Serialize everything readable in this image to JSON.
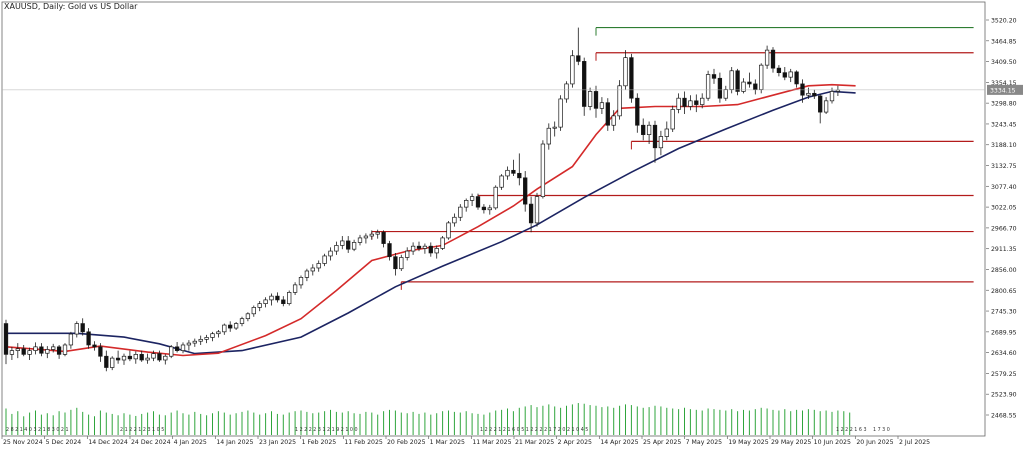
{
  "window": {
    "title": "XAUUSD, Daily:  Gold vs US Dollar"
  },
  "colors": {
    "background": "#ffffff",
    "grid": "#e9e9e9",
    "axis": "#666666",
    "candle_outline": "#1a1a1a",
    "candle_up_fill": "#ffffff",
    "candle_down_fill": "#111111",
    "ma_fast": "#d42a2a",
    "ma_slow": "#1c2462",
    "level_red": "#b31b1b",
    "level_green": "#2e7d32",
    "volume": "#2fa53c",
    "price_tag": "#888888"
  },
  "price_axis": {
    "labels": [
      "3520.20",
      "3464.85",
      "3409.50",
      "3354.15",
      "3298.80",
      "3243.45",
      "3188.10",
      "3132.75",
      "3077.40",
      "3022.05",
      "2966.70",
      "2911.35",
      "2856.00",
      "2800.65",
      "2745.30",
      "2689.95",
      "2634.60",
      "2579.25",
      "2523.90",
      "2468.55"
    ],
    "current_price_label": "3334.15"
  },
  "time_axis": {
    "labels": [
      "25 Nov 2024",
      "5 Dec 2024",
      "14 Dec 2024",
      "24 Dec 2024",
      "4 Jan 2025",
      "14 Jan 2025",
      "23 Jan 2025",
      "1 Feb 2025",
      "11 Feb 2025",
      "20 Feb 2025",
      "1 Mar 2025",
      "11 Mar 2025",
      "21 Mar 2025",
      "2 Apr 2025",
      "14 Apr 2025",
      "25 Apr 2025",
      "7 May 2025",
      "19 May 2025",
      "29 May 2025",
      "10 Jun 2025",
      "20 Jun 2025",
      "2 Jul 2025"
    ]
  },
  "volume_tick_labels": [
    {
      "text": "2 8 2 1 4 0 3 2 1 8 3 0 2 1"
    },
    {
      "text": "1 2 2 2 2 3 1 2 1 9 2 1 0 0"
    },
    {
      "text": "2 1 2 2 1 2 3 1 0 5"
    },
    {
      "text": "1 2 2 2 1 2 1 6 0 5 1 2 2 2 2 1 7 2 0 2 1 0 4 5"
    },
    {
      "text": "1 2 2 2 1 6 3"
    },
    {
      "text": "1 7 3 0"
    }
  ],
  "chart_data": {
    "type": "candlestick",
    "title": "XAUUSD, Daily:  Gold vs US Dollar",
    "xlabel": "",
    "ylabel": "",
    "ylim": [
      2440,
      3545
    ],
    "x_range": [
      "25 Nov 2024",
      "2 Jul 2025"
    ],
    "grid": false,
    "legend": "none",
    "ohlc": [
      {
        "o": 2712,
        "h": 2722,
        "l": 2604,
        "c": 2630
      },
      {
        "o": 2630,
        "h": 2650,
        "l": 2615,
        "c": 2640
      },
      {
        "o": 2640,
        "h": 2660,
        "l": 2620,
        "c": 2645
      },
      {
        "o": 2645,
        "h": 2655,
        "l": 2625,
        "c": 2630
      },
      {
        "o": 2630,
        "h": 2648,
        "l": 2615,
        "c": 2640
      },
      {
        "o": 2640,
        "h": 2662,
        "l": 2630,
        "c": 2650
      },
      {
        "o": 2650,
        "h": 2660,
        "l": 2625,
        "c": 2633
      },
      {
        "o": 2633,
        "h": 2652,
        "l": 2620,
        "c": 2643
      },
      {
        "o": 2643,
        "h": 2658,
        "l": 2635,
        "c": 2650
      },
      {
        "o": 2650,
        "h": 2655,
        "l": 2618,
        "c": 2630
      },
      {
        "o": 2630,
        "h": 2660,
        "l": 2625,
        "c": 2655
      },
      {
        "o": 2655,
        "h": 2690,
        "l": 2645,
        "c": 2684
      },
      {
        "o": 2684,
        "h": 2718,
        "l": 2675,
        "c": 2712
      },
      {
        "o": 2712,
        "h": 2726,
        "l": 2680,
        "c": 2690
      },
      {
        "o": 2690,
        "h": 2700,
        "l": 2645,
        "c": 2655
      },
      {
        "o": 2655,
        "h": 2665,
        "l": 2640,
        "c": 2650
      },
      {
        "o": 2650,
        "h": 2660,
        "l": 2610,
        "c": 2625
      },
      {
        "o": 2625,
        "h": 2640,
        "l": 2585,
        "c": 2595
      },
      {
        "o": 2595,
        "h": 2625,
        "l": 2588,
        "c": 2620
      },
      {
        "o": 2620,
        "h": 2640,
        "l": 2605,
        "c": 2615
      },
      {
        "o": 2615,
        "h": 2632,
        "l": 2602,
        "c": 2625
      },
      {
        "o": 2625,
        "h": 2640,
        "l": 2612,
        "c": 2618
      },
      {
        "o": 2618,
        "h": 2638,
        "l": 2605,
        "c": 2630
      },
      {
        "o": 2630,
        "h": 2640,
        "l": 2610,
        "c": 2615
      },
      {
        "o": 2615,
        "h": 2632,
        "l": 2605,
        "c": 2620
      },
      {
        "o": 2620,
        "h": 2640,
        "l": 2612,
        "c": 2632
      },
      {
        "o": 2632,
        "h": 2640,
        "l": 2610,
        "c": 2615
      },
      {
        "o": 2615,
        "h": 2630,
        "l": 2603,
        "c": 2625
      },
      {
        "o": 2625,
        "h": 2655,
        "l": 2620,
        "c": 2650
      },
      {
        "o": 2650,
        "h": 2663,
        "l": 2635,
        "c": 2640
      },
      {
        "o": 2640,
        "h": 2662,
        "l": 2633,
        "c": 2655
      },
      {
        "o": 2655,
        "h": 2668,
        "l": 2640,
        "c": 2660
      },
      {
        "o": 2660,
        "h": 2672,
        "l": 2650,
        "c": 2665
      },
      {
        "o": 2665,
        "h": 2680,
        "l": 2655,
        "c": 2670
      },
      {
        "o": 2670,
        "h": 2682,
        "l": 2660,
        "c": 2675
      },
      {
        "o": 2675,
        "h": 2690,
        "l": 2665,
        "c": 2685
      },
      {
        "o": 2685,
        "h": 2695,
        "l": 2675,
        "c": 2690
      },
      {
        "o": 2690,
        "h": 2712,
        "l": 2682,
        "c": 2708
      },
      {
        "o": 2708,
        "h": 2718,
        "l": 2690,
        "c": 2700
      },
      {
        "o": 2700,
        "h": 2716,
        "l": 2695,
        "c": 2712
      },
      {
        "o": 2712,
        "h": 2730,
        "l": 2705,
        "c": 2725
      },
      {
        "o": 2725,
        "h": 2742,
        "l": 2718,
        "c": 2738
      },
      {
        "o": 2738,
        "h": 2760,
        "l": 2730,
        "c": 2755
      },
      {
        "o": 2755,
        "h": 2772,
        "l": 2745,
        "c": 2765
      },
      {
        "o": 2765,
        "h": 2782,
        "l": 2755,
        "c": 2775
      },
      {
        "o": 2775,
        "h": 2792,
        "l": 2760,
        "c": 2785
      },
      {
        "o": 2785,
        "h": 2795,
        "l": 2768,
        "c": 2775
      },
      {
        "o": 2775,
        "h": 2785,
        "l": 2758,
        "c": 2765
      },
      {
        "o": 2765,
        "h": 2800,
        "l": 2760,
        "c": 2795
      },
      {
        "o": 2795,
        "h": 2822,
        "l": 2788,
        "c": 2815
      },
      {
        "o": 2815,
        "h": 2840,
        "l": 2805,
        "c": 2835
      },
      {
        "o": 2835,
        "h": 2858,
        "l": 2825,
        "c": 2852
      },
      {
        "o": 2852,
        "h": 2870,
        "l": 2840,
        "c": 2860
      },
      {
        "o": 2860,
        "h": 2880,
        "l": 2850,
        "c": 2872
      },
      {
        "o": 2872,
        "h": 2898,
        "l": 2865,
        "c": 2892
      },
      {
        "o": 2892,
        "h": 2915,
        "l": 2880,
        "c": 2905
      },
      {
        "o": 2905,
        "h": 2930,
        "l": 2895,
        "c": 2920
      },
      {
        "o": 2920,
        "h": 2945,
        "l": 2910,
        "c": 2932
      },
      {
        "o": 2932,
        "h": 2945,
        "l": 2900,
        "c": 2910
      },
      {
        "o": 2910,
        "h": 2935,
        "l": 2905,
        "c": 2928
      },
      {
        "o": 2928,
        "h": 2948,
        "l": 2920,
        "c": 2940
      },
      {
        "o": 2940,
        "h": 2952,
        "l": 2925,
        "c": 2945
      },
      {
        "o": 2945,
        "h": 2960,
        "l": 2935,
        "c": 2950
      },
      {
        "o": 2950,
        "h": 2962,
        "l": 2938,
        "c": 2955
      },
      {
        "o": 2955,
        "h": 2960,
        "l": 2915,
        "c": 2925
      },
      {
        "o": 2925,
        "h": 2932,
        "l": 2880,
        "c": 2890
      },
      {
        "o": 2890,
        "h": 2900,
        "l": 2840,
        "c": 2858
      },
      {
        "o": 2858,
        "h": 2895,
        "l": 2852,
        "c": 2888
      },
      {
        "o": 2888,
        "h": 2915,
        "l": 2880,
        "c": 2905
      },
      {
        "o": 2905,
        "h": 2928,
        "l": 2895,
        "c": 2918
      },
      {
        "o": 2918,
        "h": 2930,
        "l": 2905,
        "c": 2912
      },
      {
        "o": 2912,
        "h": 2925,
        "l": 2898,
        "c": 2918
      },
      {
        "o": 2918,
        "h": 2928,
        "l": 2890,
        "c": 2900
      },
      {
        "o": 2900,
        "h": 2920,
        "l": 2885,
        "c": 2912
      },
      {
        "o": 2912,
        "h": 2945,
        "l": 2908,
        "c": 2940
      },
      {
        "o": 2940,
        "h": 2985,
        "l": 2935,
        "c": 2980
      },
      {
        "o": 2980,
        "h": 3005,
        "l": 2970,
        "c": 2995
      },
      {
        "o": 2995,
        "h": 3030,
        "l": 2985,
        "c": 3022
      },
      {
        "o": 3022,
        "h": 3045,
        "l": 3010,
        "c": 3040
      },
      {
        "o": 3040,
        "h": 3058,
        "l": 3025,
        "c": 3050
      },
      {
        "o": 3050,
        "h": 3058,
        "l": 3015,
        "c": 3022
      },
      {
        "o": 3022,
        "h": 3030,
        "l": 3005,
        "c": 3015
      },
      {
        "o": 3015,
        "h": 3028,
        "l": 3002,
        "c": 3020
      },
      {
        "o": 3020,
        "h": 3080,
        "l": 3015,
        "c": 3075
      },
      {
        "o": 3075,
        "h": 3110,
        "l": 3068,
        "c": 3105
      },
      {
        "o": 3105,
        "h": 3130,
        "l": 3095,
        "c": 3120
      },
      {
        "o": 3120,
        "h": 3148,
        "l": 3105,
        "c": 3112
      },
      {
        "o": 3112,
        "h": 3165,
        "l": 3080,
        "c": 3100
      },
      {
        "o": 3100,
        "h": 3118,
        "l": 3010,
        "c": 3030
      },
      {
        "o": 3030,
        "h": 3050,
        "l": 2955,
        "c": 2980
      },
      {
        "o": 2980,
        "h": 3060,
        "l": 2970,
        "c": 3050
      },
      {
        "o": 3050,
        "h": 3200,
        "l": 3045,
        "c": 3190
      },
      {
        "o": 3190,
        "h": 3245,
        "l": 3175,
        "c": 3232
      },
      {
        "o": 3232,
        "h": 3250,
        "l": 3210,
        "c": 3235
      },
      {
        "o": 3235,
        "h": 3320,
        "l": 3225,
        "c": 3310
      },
      {
        "o": 3310,
        "h": 3357,
        "l": 3300,
        "c": 3350
      },
      {
        "o": 3350,
        "h": 3440,
        "l": 3340,
        "c": 3425
      },
      {
        "o": 3425,
        "h": 3500,
        "l": 3400,
        "c": 3410
      },
      {
        "o": 3410,
        "h": 3420,
        "l": 3265,
        "c": 3290
      },
      {
        "o": 3290,
        "h": 3340,
        "l": 3280,
        "c": 3330
      },
      {
        "o": 3330,
        "h": 3345,
        "l": 3260,
        "c": 3285
      },
      {
        "o": 3285,
        "h": 3315,
        "l": 3270,
        "c": 3300
      },
      {
        "o": 3300,
        "h": 3312,
        "l": 3225,
        "c": 3240
      },
      {
        "o": 3240,
        "h": 3280,
        "l": 3225,
        "c": 3265
      },
      {
        "o": 3265,
        "h": 3360,
        "l": 3255,
        "c": 3345
      },
      {
        "o": 3345,
        "h": 3440,
        "l": 3335,
        "c": 3420
      },
      {
        "o": 3420,
        "h": 3430,
        "l": 3300,
        "c": 3312
      },
      {
        "o": 3312,
        "h": 3325,
        "l": 3220,
        "c": 3240
      },
      {
        "o": 3240,
        "h": 3258,
        "l": 3200,
        "c": 3215
      },
      {
        "o": 3215,
        "h": 3250,
        "l": 3190,
        "c": 3240
      },
      {
        "o": 3240,
        "h": 3252,
        "l": 3140,
        "c": 3180
      },
      {
        "o": 3180,
        "h": 3225,
        "l": 3160,
        "c": 3210
      },
      {
        "o": 3210,
        "h": 3250,
        "l": 3200,
        "c": 3230
      },
      {
        "o": 3230,
        "h": 3292,
        "l": 3222,
        "c": 3282
      },
      {
        "o": 3282,
        "h": 3325,
        "l": 3272,
        "c": 3312
      },
      {
        "o": 3312,
        "h": 3330,
        "l": 3270,
        "c": 3290
      },
      {
        "o": 3290,
        "h": 3320,
        "l": 3280,
        "c": 3305
      },
      {
        "o": 3305,
        "h": 3322,
        "l": 3275,
        "c": 3295
      },
      {
        "o": 3295,
        "h": 3325,
        "l": 3285,
        "c": 3312
      },
      {
        "o": 3312,
        "h": 3385,
        "l": 3305,
        "c": 3375
      },
      {
        "o": 3375,
        "h": 3390,
        "l": 3350,
        "c": 3365
      },
      {
        "o": 3365,
        "h": 3380,
        "l": 3300,
        "c": 3312
      },
      {
        "o": 3312,
        "h": 3345,
        "l": 3305,
        "c": 3335
      },
      {
        "o": 3335,
        "h": 3395,
        "l": 3325,
        "c": 3385
      },
      {
        "o": 3385,
        "h": 3390,
        "l": 3320,
        "c": 3330
      },
      {
        "o": 3330,
        "h": 3365,
        "l": 3325,
        "c": 3355
      },
      {
        "o": 3355,
        "h": 3380,
        "l": 3340,
        "c": 3350
      },
      {
        "o": 3350,
        "h": 3362,
        "l": 3322,
        "c": 3335
      },
      {
        "o": 3335,
        "h": 3405,
        "l": 3325,
        "c": 3400
      },
      {
        "o": 3400,
        "h": 3452,
        "l": 3390,
        "c": 3440
      },
      {
        "o": 3440,
        "h": 3448,
        "l": 3380,
        "c": 3392
      },
      {
        "o": 3392,
        "h": 3400,
        "l": 3370,
        "c": 3380
      },
      {
        "o": 3380,
        "h": 3395,
        "l": 3360,
        "c": 3368
      },
      {
        "o": 3368,
        "h": 3390,
        "l": 3355,
        "c": 3382
      },
      {
        "o": 3382,
        "h": 3386,
        "l": 3340,
        "c": 3350
      },
      {
        "o": 3350,
        "h": 3362,
        "l": 3300,
        "c": 3320
      },
      {
        "o": 3320,
        "h": 3340,
        "l": 3310,
        "c": 3325
      },
      {
        "o": 3325,
        "h": 3335,
        "l": 3310,
        "c": 3318
      },
      {
        "o": 3318,
        "h": 3322,
        "l": 3245,
        "c": 3275
      },
      {
        "o": 3275,
        "h": 3315,
        "l": 3270,
        "c": 3305
      },
      {
        "o": 3305,
        "h": 3340,
        "l": 3298,
        "c": 3330
      },
      {
        "o": 3330,
        "h": 3345,
        "l": 3318,
        "c": 3334
      }
    ],
    "ma_fast": [
      {
        "i": 0,
        "v": 2650
      },
      {
        "i": 10,
        "v": 2638
      },
      {
        "i": 16,
        "v": 2652
      },
      {
        "i": 24,
        "v": 2636
      },
      {
        "i": 30,
        "v": 2627
      },
      {
        "i": 36,
        "v": 2633
      },
      {
        "i": 44,
        "v": 2680
      },
      {
        "i": 50,
        "v": 2725
      },
      {
        "i": 56,
        "v": 2800
      },
      {
        "i": 62,
        "v": 2880
      },
      {
        "i": 68,
        "v": 2905
      },
      {
        "i": 74,
        "v": 2920
      },
      {
        "i": 80,
        "v": 2970
      },
      {
        "i": 86,
        "v": 3025
      },
      {
        "i": 90,
        "v": 3070
      },
      {
        "i": 96,
        "v": 3130
      },
      {
        "i": 100,
        "v": 3215
      },
      {
        "i": 104,
        "v": 3285
      },
      {
        "i": 110,
        "v": 3290
      },
      {
        "i": 118,
        "v": 3290
      },
      {
        "i": 124,
        "v": 3295
      },
      {
        "i": 130,
        "v": 3320
      },
      {
        "i": 136,
        "v": 3345
      },
      {
        "i": 140,
        "v": 3348
      },
      {
        "i": 144,
        "v": 3345
      }
    ],
    "ma_slow": [
      {
        "i": 0,
        "v": 2686
      },
      {
        "i": 6,
        "v": 2686
      },
      {
        "i": 12,
        "v": 2686
      },
      {
        "i": 20,
        "v": 2676
      },
      {
        "i": 26,
        "v": 2658
      },
      {
        "i": 32,
        "v": 2632
      },
      {
        "i": 40,
        "v": 2640
      },
      {
        "i": 50,
        "v": 2676
      },
      {
        "i": 58,
        "v": 2740
      },
      {
        "i": 66,
        "v": 2810
      },
      {
        "i": 74,
        "v": 2865
      },
      {
        "i": 84,
        "v": 2930
      },
      {
        "i": 90,
        "v": 2975
      },
      {
        "i": 98,
        "v": 3048
      },
      {
        "i": 106,
        "v": 3115
      },
      {
        "i": 114,
        "v": 3178
      },
      {
        "i": 122,
        "v": 3230
      },
      {
        "i": 130,
        "v": 3280
      },
      {
        "i": 136,
        "v": 3315
      },
      {
        "i": 140,
        "v": 3330
      },
      {
        "i": 144,
        "v": 3326
      }
    ],
    "levels": [
      {
        "price": 3500,
        "from": 100,
        "to": 164,
        "color": "green"
      },
      {
        "price": 3433,
        "from": 100,
        "to": 164,
        "color": "red"
      },
      {
        "price": 3197,
        "from": 106,
        "to": 164,
        "color": "red"
      },
      {
        "price": 3053,
        "from": 80,
        "to": 164,
        "color": "red"
      },
      {
        "price": 2957,
        "from": 62,
        "to": 164,
        "color": "red"
      },
      {
        "price": 2823,
        "from": 67,
        "to": 164,
        "color": "red"
      }
    ],
    "volume": [
      0.78,
      0.62,
      0.7,
      0.55,
      0.66,
      0.72,
      0.6,
      0.64,
      0.58,
      0.7,
      0.66,
      0.74,
      0.8,
      0.68,
      0.6,
      0.55,
      0.72,
      0.66,
      0.62,
      0.58,
      0.64,
      0.6,
      0.56,
      0.62,
      0.66,
      0.7,
      0.6,
      0.58,
      0.66,
      0.72,
      0.64,
      0.6,
      0.68,
      0.62,
      0.58,
      0.64,
      0.7,
      0.66,
      0.6,
      0.64,
      0.68,
      0.72,
      0.66,
      0.6,
      0.64,
      0.7,
      0.62,
      0.6,
      0.66,
      0.7,
      0.72,
      0.68,
      0.64,
      0.66,
      0.7,
      0.74,
      0.68,
      0.66,
      0.7,
      0.64,
      0.62,
      0.68,
      0.66,
      0.6,
      0.7,
      0.74,
      0.72,
      0.66,
      0.64,
      0.68,
      0.62,
      0.66,
      0.6,
      0.64,
      0.7,
      0.72,
      0.68,
      0.66,
      0.7,
      0.64,
      0.62,
      0.6,
      0.66,
      0.72,
      0.74,
      0.78,
      0.7,
      0.8,
      0.84,
      0.88,
      0.82,
      0.86,
      0.9,
      0.84,
      0.8,
      0.86,
      0.9,
      0.94,
      0.92,
      0.88,
      0.86,
      0.82,
      0.84,
      0.8,
      0.86,
      0.9,
      0.88,
      0.84,
      0.8,
      0.82,
      0.86,
      0.84,
      0.8,
      0.78,
      0.76,
      0.8,
      0.76,
      0.74,
      0.72,
      0.78,
      0.76,
      0.74,
      0.72,
      0.76,
      0.7,
      0.74,
      0.72,
      0.76,
      0.8,
      0.78,
      0.74,
      0.72,
      0.76,
      0.7,
      0.74,
      0.72,
      0.76,
      0.74,
      0.7,
      0.72,
      0.68,
      0.72,
      0.7,
      0.66
    ]
  }
}
